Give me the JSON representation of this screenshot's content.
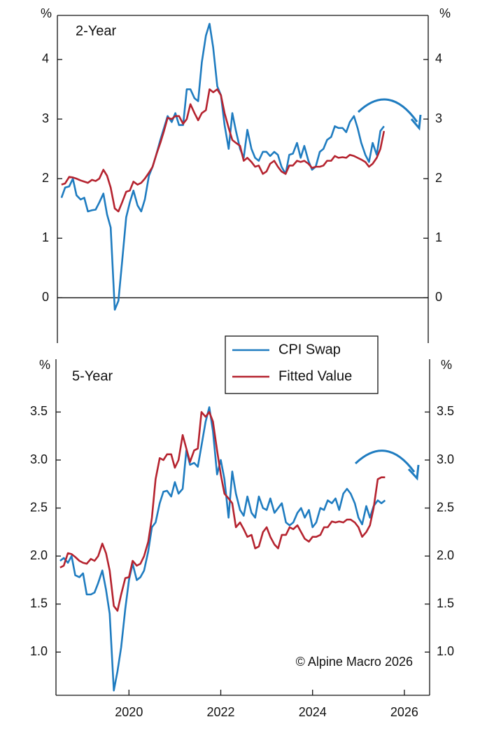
{
  "chart_data": [
    {
      "type": "line",
      "panel_label": "2-Year",
      "y_axis_label": "%",
      "x": [
        2019,
        2019.08,
        2019.17,
        2019.25,
        2019.33,
        2019.42,
        2019.5,
        2019.58,
        2019.67,
        2019.75,
        2019.83,
        2019.92,
        2020,
        2020.08,
        2020.17,
        2020.25,
        2020.33,
        2020.42,
        2020.5,
        2020.58,
        2020.67,
        2020.75,
        2020.83,
        2020.92,
        2021,
        2021.08,
        2021.17,
        2021.25,
        2021.33,
        2021.42,
        2021.5,
        2021.58,
        2021.67,
        2021.75,
        2021.83,
        2021.92,
        2022,
        2022.08,
        2022.17,
        2022.25,
        2022.33,
        2022.42,
        2022.5,
        2022.58,
        2022.67,
        2022.75,
        2022.83,
        2022.92,
        2023,
        2023.08,
        2023.17,
        2023.25,
        2023.33,
        2023.42,
        2023.5,
        2023.58,
        2023.67,
        2023.75,
        2023.83,
        2023.92,
        2024,
        2024.08,
        2024.17,
        2024.25,
        2024.33,
        2024.42,
        2024.5,
        2024.58,
        2024.67,
        2024.75,
        2024.83,
        2024.92,
        2025,
        2025.08,
        2025.17,
        2025.25,
        2025.33,
        2025.42,
        2025.5,
        2025.58,
        2025.67,
        2025.75,
        2025.83,
        2025.92,
        2026,
        2026.08
      ],
      "series": [
        {
          "color": "#1f7cc0",
          "values": [
            1.68,
            1.85,
            1.87,
            2.0,
            1.72,
            1.65,
            1.68,
            1.45,
            1.47,
            1.48,
            1.6,
            1.75,
            1.4,
            1.18,
            -0.2,
            -0.05,
            0.6,
            1.35,
            1.6,
            1.8,
            1.55,
            1.45,
            1.65,
            2.05,
            2.2,
            2.4,
            2.65,
            2.85,
            3.05,
            2.95,
            3.1,
            2.9,
            2.9,
            3.5,
            3.5,
            3.35,
            3.3,
            3.95,
            4.4,
            4.6,
            4.2,
            3.55,
            3.4,
            2.9,
            2.5,
            3.1,
            2.8,
            2.5,
            2.35,
            2.82,
            2.5,
            2.35,
            2.3,
            2.45,
            2.45,
            2.38,
            2.45,
            2.4,
            2.2,
            2.08,
            2.4,
            2.42,
            2.6,
            2.35,
            2.55,
            2.3,
            2.15,
            2.2,
            2.45,
            2.5,
            2.65,
            2.7,
            2.88,
            2.85,
            2.85,
            2.78,
            2.95,
            3.05,
            2.85,
            2.6,
            2.4,
            2.28,
            2.6,
            2.4,
            2.8,
            2.88
          ]
        },
        {
          "color": "#b5232f",
          "values": [
            1.9,
            1.92,
            2.03,
            2.02,
            2.0,
            1.97,
            1.95,
            1.93,
            1.98,
            1.96,
            2.0,
            2.15,
            2.05,
            1.85,
            1.5,
            1.45,
            1.6,
            1.78,
            1.8,
            1.95,
            1.9,
            1.93,
            2.0,
            2.1,
            2.2,
            2.4,
            2.6,
            2.8,
            3.02,
            3.0,
            3.05,
            3.05,
            2.92,
            3.0,
            3.25,
            3.1,
            2.98,
            3.1,
            3.15,
            3.5,
            3.45,
            3.5,
            3.4,
            3.1,
            2.85,
            2.65,
            2.6,
            2.55,
            2.3,
            2.35,
            2.28,
            2.2,
            2.22,
            2.08,
            2.12,
            2.25,
            2.3,
            2.2,
            2.12,
            2.08,
            2.22,
            2.22,
            2.3,
            2.28,
            2.3,
            2.25,
            2.18,
            2.2,
            2.2,
            2.22,
            2.3,
            2.3,
            2.38,
            2.35,
            2.36,
            2.35,
            2.4,
            2.38,
            2.35,
            2.32,
            2.28,
            2.2,
            2.25,
            2.35,
            2.5,
            2.8
          ]
        }
      ],
      "xlim": [
        2018.91,
        2027.05
      ],
      "ylim": [
        -0.76,
        4.74
      ],
      "yticks": [
        0,
        1,
        2,
        3,
        4
      ],
      "zero_line": true
    },
    {
      "type": "line",
      "panel_label": "5-Year",
      "y_axis_label": "%",
      "source": "© Alpine Macro 2026",
      "x": [
        2019,
        2019.08,
        2019.17,
        2019.25,
        2019.33,
        2019.42,
        2019.5,
        2019.58,
        2019.67,
        2019.75,
        2019.83,
        2019.92,
        2020,
        2020.08,
        2020.17,
        2020.25,
        2020.33,
        2020.42,
        2020.5,
        2020.58,
        2020.67,
        2020.75,
        2020.83,
        2020.92,
        2021,
        2021.08,
        2021.17,
        2021.25,
        2021.33,
        2021.42,
        2021.5,
        2021.58,
        2021.67,
        2021.75,
        2021.83,
        2021.92,
        2022,
        2022.08,
        2022.17,
        2022.25,
        2022.33,
        2022.42,
        2022.5,
        2022.58,
        2022.67,
        2022.75,
        2022.83,
        2022.92,
        2023,
        2023.08,
        2023.17,
        2023.25,
        2023.33,
        2023.42,
        2023.5,
        2023.58,
        2023.67,
        2023.75,
        2023.83,
        2023.92,
        2024,
        2024.08,
        2024.17,
        2024.25,
        2024.33,
        2024.42,
        2024.5,
        2024.58,
        2024.67,
        2024.75,
        2024.83,
        2024.92,
        2025,
        2025.08,
        2025.17,
        2025.25,
        2025.33,
        2025.42,
        2025.5,
        2025.58,
        2025.67,
        2025.75,
        2025.83,
        2025.92,
        2026,
        2026.08
      ],
      "series": [
        {
          "name": "CPI Swap",
          "color": "#1f7cc0",
          "values": [
            1.95,
            1.98,
            1.93,
            2.0,
            1.8,
            1.78,
            1.82,
            1.6,
            1.6,
            1.62,
            1.72,
            1.85,
            1.65,
            1.4,
            0.6,
            0.8,
            1.05,
            1.45,
            1.75,
            1.92,
            1.75,
            1.78,
            1.85,
            2.05,
            2.3,
            2.35,
            2.55,
            2.67,
            2.68,
            2.62,
            2.77,
            2.65,
            2.7,
            3.1,
            2.95,
            2.97,
            2.93,
            3.15,
            3.4,
            3.55,
            3.3,
            2.85,
            3.0,
            2.8,
            2.4,
            2.88,
            2.65,
            2.48,
            2.42,
            2.62,
            2.45,
            2.4,
            2.62,
            2.5,
            2.48,
            2.6,
            2.45,
            2.5,
            2.55,
            2.35,
            2.32,
            2.35,
            2.45,
            2.5,
            2.4,
            2.48,
            2.3,
            2.35,
            2.5,
            2.48,
            2.58,
            2.55,
            2.6,
            2.48,
            2.65,
            2.7,
            2.65,
            2.55,
            2.4,
            2.33,
            2.52,
            2.4,
            2.52,
            2.58,
            2.55,
            2.58
          ]
        },
        {
          "name": "Fitted Value",
          "color": "#b5232f",
          "values": [
            1.88,
            1.9,
            2.03,
            2.02,
            1.99,
            1.95,
            1.93,
            1.92,
            1.97,
            1.95,
            2.0,
            2.13,
            2.03,
            1.85,
            1.48,
            1.43,
            1.6,
            1.77,
            1.78,
            1.95,
            1.9,
            1.92,
            2.0,
            2.15,
            2.4,
            2.8,
            3.02,
            3.0,
            3.06,
            3.06,
            2.92,
            3.0,
            3.26,
            3.12,
            2.98,
            3.1,
            3.12,
            3.5,
            3.45,
            3.5,
            3.4,
            3.1,
            2.85,
            2.65,
            2.6,
            2.55,
            2.3,
            2.35,
            2.28,
            2.2,
            2.22,
            2.08,
            2.1,
            2.25,
            2.3,
            2.2,
            2.12,
            2.08,
            2.22,
            2.22,
            2.3,
            2.28,
            2.32,
            2.25,
            2.18,
            2.15,
            2.2,
            2.2,
            2.22,
            2.3,
            2.3,
            2.36,
            2.35,
            2.36,
            2.35,
            2.38,
            2.38,
            2.35,
            2.3,
            2.2,
            2.25,
            2.32,
            2.5,
            2.8,
            2.82,
            2.82
          ]
        }
      ],
      "xlim": [
        2018.91,
        2027.05
      ],
      "ylim": [
        0.55,
        4.05
      ],
      "yticks": [
        {
          "value": 1,
          "label": "1.0"
        },
        1.5,
        {
          "value": 2,
          "label": "2.0"
        },
        2.5,
        {
          "value": 3,
          "label": "3.0"
        },
        3.5
      ],
      "xticks": [
        {
          "value": 2020.5,
          "label": "2020"
        },
        {
          "value": 2022.5,
          "label": "2022"
        },
        {
          "value": 2024.5,
          "label": "2024"
        },
        {
          "value": 2026.5,
          "label": "2026"
        }
      ]
    }
  ]
}
